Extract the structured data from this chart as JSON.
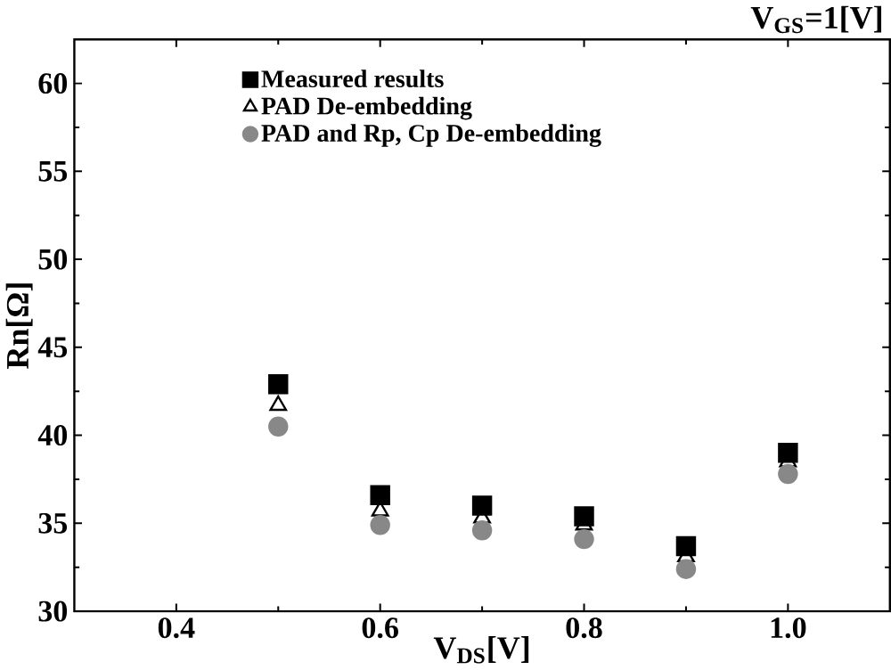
{
  "chart_data": {
    "type": "scatter",
    "xlabel": "V$_{DS}$[V]",
    "ylabel": "Rn[Ω]",
    "annotations": [
      "V$_{GS}$=1[V]"
    ],
    "x": [
      0.5,
      0.6,
      0.7,
      0.8,
      0.9,
      1.0
    ],
    "series": [
      {
        "name": "Measured results",
        "color": "#000000",
        "marker": "square",
        "values": [
          42.9,
          36.6,
          36.0,
          35.4,
          33.7,
          39.0
        ]
      },
      {
        "name": "PAD De-embedding",
        "color": "#000000",
        "marker": "triangle",
        "values": [
          41.7,
          35.7,
          35.3,
          34.9,
          33.1,
          38.5
        ]
      },
      {
        "name": "PAD and Rp, Cp De-embedding",
        "color": "#888888",
        "marker": "circle",
        "values": [
          40.5,
          34.9,
          34.6,
          34.1,
          32.4,
          37.8
        ]
      }
    ],
    "xlim": [
      0.3,
      1.1
    ],
    "ylim": [
      30,
      62.5
    ],
    "xticks": [
      0.4,
      0.6,
      0.8,
      {
        "value": 1.0,
        "label": "1.0"
      }
    ],
    "yticks": [
      30,
      35,
      40,
      45,
      50,
      55,
      60
    ],
    "legend": "top left",
    "grid": false
  }
}
